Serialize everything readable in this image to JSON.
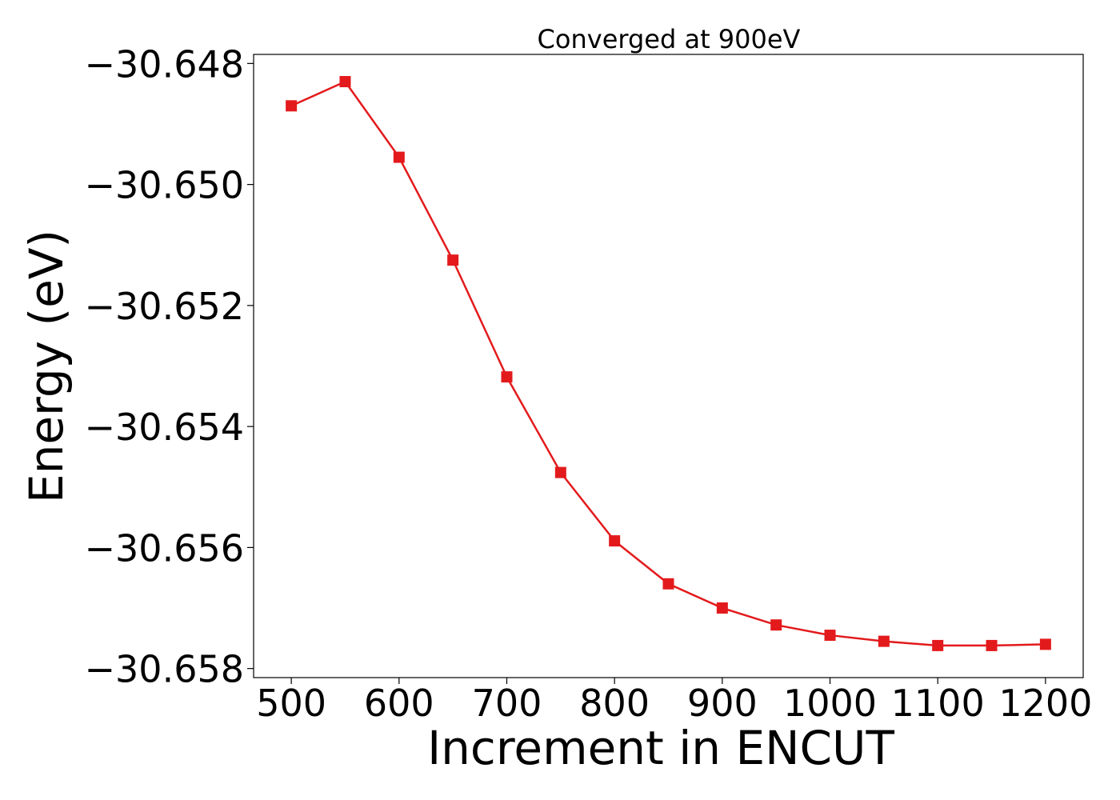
{
  "chart_data": {
    "type": "line",
    "title": "Converged at 900eV",
    "xlabel": "Increment in ENCUT",
    "ylabel": "Energy (eV)",
    "xlim": [
      465,
      1235
    ],
    "ylim": [
      -30.65815,
      -30.64785
    ],
    "x_ticks": [
      500,
      600,
      700,
      800,
      900,
      1000,
      1100,
      1200
    ],
    "y_ticks": [
      -30.648,
      -30.65,
      -30.652,
      -30.654,
      -30.656,
      -30.658
    ],
    "y_tick_labels": [
      "−30.648",
      "−30.650",
      "−30.652",
      "−30.654",
      "−30.656",
      "−30.658"
    ],
    "grid": false,
    "series": [
      {
        "color": "#e31a1c",
        "marker": "square",
        "x": [
          500,
          550,
          600,
          650,
          700,
          750,
          800,
          850,
          900,
          950,
          1000,
          1050,
          1100,
          1150,
          1200
        ],
        "y": [
          -30.6487,
          -30.6483,
          -30.64955,
          -30.65125,
          -30.65318,
          -30.65476,
          -30.65589,
          -30.6566,
          -30.657,
          -30.65728,
          -30.65745,
          -30.65755,
          -30.65762,
          -30.65762,
          -30.6576
        ]
      }
    ]
  }
}
